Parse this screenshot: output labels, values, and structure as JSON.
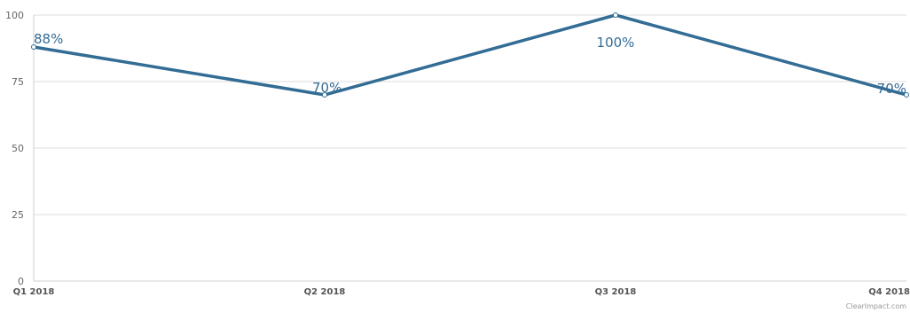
{
  "chart_data": {
    "type": "line",
    "categories": [
      "Q1 2018",
      "Q2 2018",
      "Q3 2018",
      "Q4 2018"
    ],
    "series": [
      {
        "values": [
          88,
          70,
          100,
          70
        ],
        "data_labels": [
          "88%",
          "70%",
          "100%",
          "70%"
        ],
        "color": "#336c94"
      }
    ],
    "ylim": [
      0,
      100
    ],
    "y_ticks": [
      "0",
      "25",
      "50",
      "75",
      "100"
    ],
    "grid": true,
    "legend": "none",
    "credit": "ClearImpact.com"
  },
  "colors": {
    "series": "#336c94",
    "grid": "#dddddd",
    "tick_text": "#666666"
  }
}
